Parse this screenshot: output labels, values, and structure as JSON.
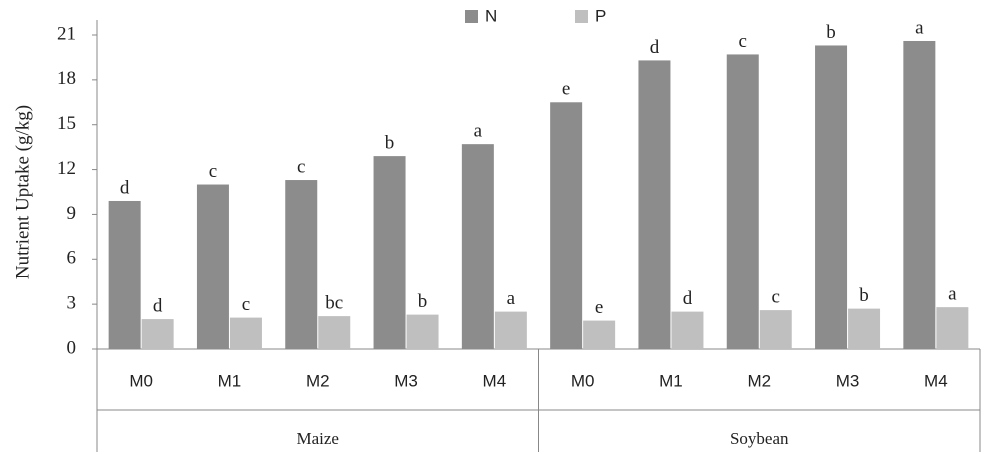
{
  "chart_data": {
    "type": "bar",
    "y_label": "Nutrient Uptake (g/kg)",
    "groups": [
      {
        "label": "Maize",
        "categories": [
          "M0",
          "M1",
          "M2",
          "M3",
          "M4"
        ]
      },
      {
        "label": "Soybean",
        "categories": [
          "M0",
          "M1",
          "M2",
          "M3",
          "M4"
        ]
      }
    ],
    "series": [
      {
        "name": "N",
        "color": "#8c8c8c",
        "values": [
          9.9,
          11.0,
          11.3,
          12.9,
          13.7,
          16.5,
          19.3,
          19.7,
          20.3,
          20.6
        ],
        "letters": [
          "d",
          "c",
          "c",
          "b",
          "a",
          "e",
          "d",
          "c",
          "b",
          "a"
        ]
      },
      {
        "name": "P",
        "color": "#bfbfbf",
        "values": [
          2.0,
          2.1,
          2.2,
          2.3,
          2.5,
          1.9,
          2.5,
          2.6,
          2.7,
          2.8
        ],
        "letters": [
          "d",
          "c",
          "bc",
          "b",
          "a",
          "e",
          "d",
          "c",
          "b",
          "a"
        ]
      }
    ],
    "ylim": [
      0,
      21
    ],
    "yticks": [
      0,
      3,
      6,
      9,
      12,
      15,
      18,
      21
    ],
    "legend": "top"
  }
}
